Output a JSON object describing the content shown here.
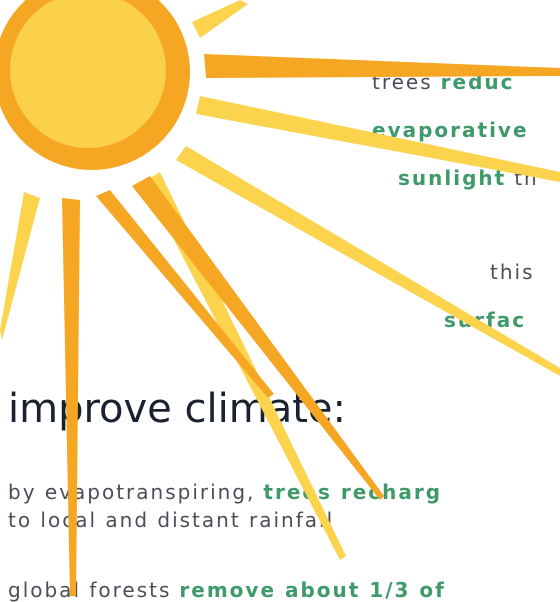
{
  "lines": [
    {
      "segments": [
        {
          "text": "trees",
          "bold": false
        },
        {
          "text": "reduc",
          "bold": true
        }
      ]
    },
    {
      "segments": [
        {
          "text": "evaporative",
          "bold": true
        }
      ]
    },
    {
      "segments": [
        {
          "text": "sunlight",
          "bold": true
        },
        {
          "text": "th",
          "bold": false
        }
      ]
    },
    {
      "segments": [
        {
          "text": "this",
          "bold": false
        }
      ]
    },
    {
      "segments": [
        {
          "text": "surfac",
          "bold": true
        }
      ]
    }
  ],
  "heading": "improve climate:",
  "paragraphs": [
    {
      "segments": [
        {
          "text": "by evapotranspiring,",
          "bold": false
        },
        {
          "text": "trees recharg",
          "bold": true
        }
      ]
    },
    {
      "segments": [
        {
          "text": "to local and distant rainfall",
          "bold": false
        }
      ]
    },
    {
      "segments": [
        {
          "text": "global forests",
          "bold": false
        },
        {
          "text": "remove about 1/3 of",
          "bold": true
        }
      ]
    }
  ]
}
